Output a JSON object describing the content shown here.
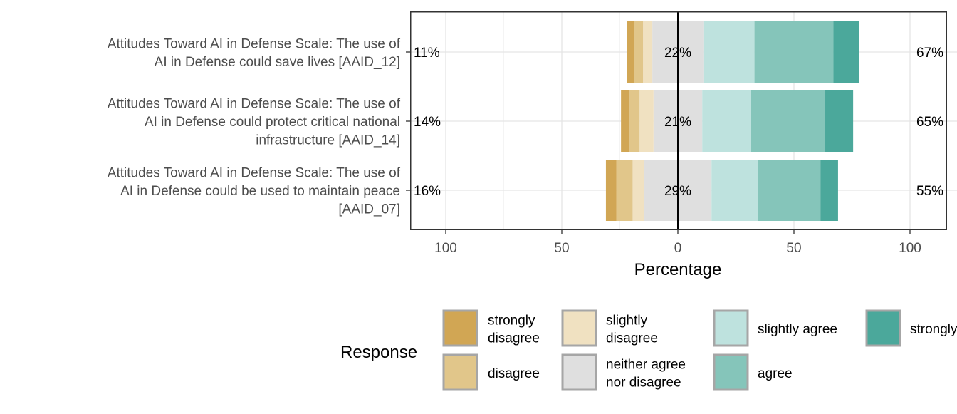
{
  "chart_data": {
    "type": "bar",
    "subtype": "diverging-stacked-likert",
    "xlabel": "Percentage",
    "x_ticks": [
      "100",
      "50",
      "0",
      "50",
      "100"
    ],
    "xlim": [
      -100,
      100
    ],
    "grid": true,
    "legend": {
      "title": "Response",
      "placement": "bottom",
      "entries": [
        {
          "label": "strongly disagree",
          "lines": [
            "strongly",
            "disagree"
          ],
          "color": "#D1A654"
        },
        {
          "label": "disagree",
          "lines": [
            "disagree"
          ],
          "color": "#E1C68A"
        },
        {
          "label": "slightly disagree",
          "lines": [
            "slightly",
            "disagree"
          ],
          "color": "#F0E1C1"
        },
        {
          "label": "neither agree nor disagree",
          "lines": [
            "neither agree",
            "nor disagree"
          ],
          "color": "#DFDFDF"
        },
        {
          "label": "slightly agree",
          "lines": [
            "slightly agree"
          ],
          "color": "#BEE2DE"
        },
        {
          "label": "agree",
          "lines": [
            "agree"
          ],
          "color": "#85C5BA"
        },
        {
          "label": "strongly agree",
          "lines": [
            "strongly agree"
          ],
          "color": "#4BA89B"
        }
      ]
    },
    "categories": [
      {
        "label": "Attitudes Toward AI in Defense Scale: The use of AI in Defense could save lives [AAID_12]",
        "label_lines": [
          "Attitudes Toward AI in Defense Scale: The use of",
          "AI in Defense could save lives [AAID_12]"
        ],
        "left_pct": "11%",
        "neutral_pct": "22%",
        "right_pct": "67%",
        "values": [
          3,
          4,
          4,
          22,
          22,
          34,
          11
        ]
      },
      {
        "label": "Attitudes Toward AI in Defense Scale: The use of AI in Defense could protect critical national infrastructure [AAID_14]",
        "label_lines": [
          "Attitudes Toward AI in Defense Scale: The use of",
          "AI in Defense could protect critical national",
          "infrastructure [AAID_14]"
        ],
        "left_pct": "14%",
        "neutral_pct": "21%",
        "right_pct": "65%",
        "values": [
          3.5,
          4.5,
          6,
          21,
          21,
          32,
          12
        ]
      },
      {
        "label": "Attitudes Toward AI in Defense Scale: The use of AI in Defense could be used to maintain peace [AAID_07]",
        "label_lines": [
          "Attitudes Toward AI in Defense Scale: The use of",
          "AI in Defense could be used to maintain peace",
          "[AAID_07]"
        ],
        "left_pct": "16%",
        "neutral_pct": "29%",
        "right_pct": "55%",
        "values": [
          4.5,
          7,
          5,
          29,
          20,
          27,
          7.5
        ]
      }
    ]
  }
}
